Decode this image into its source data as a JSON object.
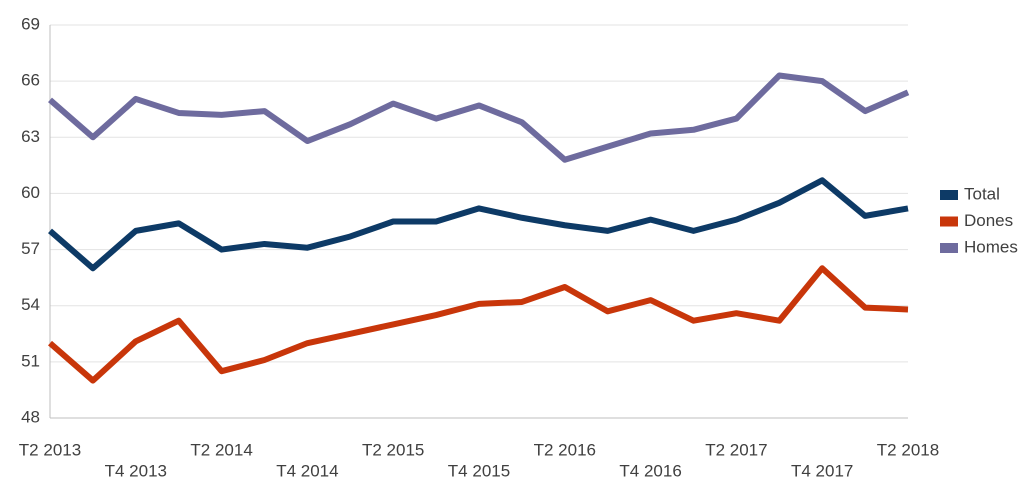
{
  "chart_data": {
    "type": "line",
    "categories": [
      "T2 2013",
      null,
      "T4 2013",
      null,
      "T2 2014",
      null,
      "T4 2014",
      null,
      "T2 2015",
      null,
      "T4 2015",
      null,
      "T2 2016",
      null,
      "T4 2016",
      null,
      "T2 2017",
      null,
      "T4 2017",
      null,
      "T2 2018"
    ],
    "series": [
      {
        "name": "Total",
        "color": "#0d3a66",
        "values": [
          58.0,
          56.0,
          58.0,
          58.4,
          57.0,
          57.3,
          57.1,
          57.7,
          58.5,
          58.5,
          59.2,
          58.7,
          58.3,
          58.0,
          58.6,
          58.0,
          58.6,
          59.5,
          60.7,
          58.8,
          59.2
        ]
      },
      {
        "name": "Dones",
        "color": "#c8360a",
        "values": [
          52.0,
          50.0,
          52.1,
          53.2,
          50.5,
          51.1,
          52.0,
          52.5,
          53.0,
          53.5,
          54.1,
          54.2,
          55.0,
          53.7,
          54.3,
          53.2,
          53.6,
          53.2,
          56.0,
          53.9,
          53.8
        ]
      },
      {
        "name": "Homes",
        "color": "#6e6b9e",
        "values": [
          65.0,
          63.0,
          65.05,
          64.3,
          64.2,
          64.4,
          62.8,
          63.7,
          64.8,
          64.0,
          64.7,
          63.8,
          61.8,
          62.5,
          63.2,
          63.4,
          64.0,
          66.3,
          66.0,
          64.4,
          65.4
        ]
      }
    ],
    "ylim": [
      48,
      69
    ],
    "yticks": [
      48,
      51,
      54,
      57,
      60,
      63,
      66,
      69
    ],
    "grid": true,
    "legend": "right"
  }
}
